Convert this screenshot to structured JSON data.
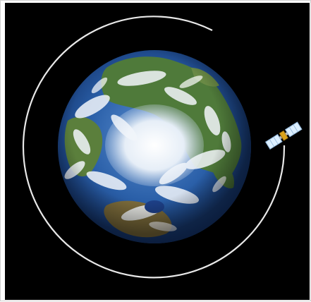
{
  "scene": {
    "background_color": "#000000",
    "frame_color": "#ffffff",
    "orbit_color": "#e8e8e8",
    "ocean_color": "#2a5fa8",
    "land_color": "#4f7a3a",
    "ice_color": "#e6eef7",
    "cloud_color": "#f2f6fb",
    "panel_color": "#dcefff",
    "satellite_body_color": "#d9a21b"
  },
  "objects": {
    "earth": {
      "icon": "earth-north-pole-view"
    },
    "orbit": {
      "icon": "orbit-path"
    },
    "satellite": {
      "icon": "satellite-with-solar-panels"
    }
  }
}
